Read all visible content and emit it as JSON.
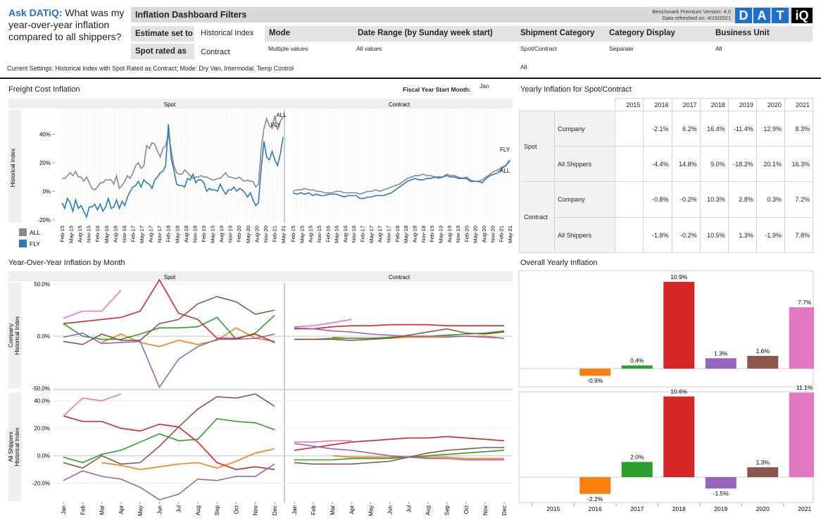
{
  "ask": {
    "prefix": "Ask DATiQ:",
    "question": " What was my year-over-year inflation compared to all shippers?"
  },
  "filters": {
    "title": "Inflation Dashboard Filters",
    "benchmark_version": "Benchmark Premium Version: 4.0",
    "refreshed": "Data refreshed on: 4/15/2021",
    "logo_letters": [
      "D",
      "A",
      "T",
      "iQ"
    ],
    "estimate_label": "Estimate set to",
    "estimate_value": "Historical Index",
    "spot_label": "Spot rated as",
    "spot_value": "Contract",
    "columns": [
      {
        "header": "Mode",
        "value": "Multiple values"
      },
      {
        "header": "Date Range (by Sunday week start)",
        "value": "All values"
      },
      {
        "header": "Shipment Category",
        "value": "Spot/Contract",
        "value2": "All"
      },
      {
        "header": "Category Display",
        "value": "Separate"
      },
      {
        "header": "Business Unit",
        "value": "All"
      }
    ],
    "current_settings": "Current Settings: Historical Index with Spot Rated as Contract; Mode: Dry Van, Intermodal, Temp Control"
  },
  "freight": {
    "title": "Freight Cost Inflation",
    "fiscal_label": "Fiscal Year Start Month:",
    "fiscal_value": "Jan",
    "spot_header": "Spot",
    "contract_header": "Contract",
    "ylabel": "Historical Index",
    "yticks": [
      "40%",
      "20%",
      "0%",
      "-20%"
    ],
    "xticks": [
      "Feb-15",
      "May-15",
      "Aug-15",
      "Nov-15",
      "Feb-16",
      "May-16",
      "Aug-16",
      "Nov-16",
      "Feb-17",
      "May-17",
      "Aug-17",
      "Nov-17",
      "Feb-18",
      "May-18",
      "Aug-18",
      "Nov-18",
      "Feb-19",
      "May-19",
      "Aug-19",
      "Nov-19",
      "Feb-20",
      "May-20",
      "Aug-20",
      "Nov-20",
      "Feb-21",
      "May-21"
    ],
    "legend": [
      {
        "name": "ALL",
        "color": "#8a8a8a"
      },
      {
        "name": "FLY",
        "color": "#2b7bba"
      }
    ],
    "end_labels": {
      "spot_all": "ALL",
      "spot_fly": "FLY",
      "contract_fly": "FLY",
      "contract_all": "ALL"
    }
  },
  "yearly_table": {
    "title": "Yearly Inflation for Spot/Contract",
    "years": [
      "2015",
      "2016",
      "2017",
      "2018",
      "2019",
      "2020",
      "2021"
    ],
    "groups": [
      {
        "name": "Spot",
        "rows": [
          {
            "name": "Company",
            "values": [
              "",
              "-2.1%",
              "6.2%",
              "16.4%",
              "-11.4%",
              "12.9%",
              "8.3%"
            ]
          },
          {
            "name": "All Shippers",
            "values": [
              "",
              "-4.4%",
              "14.8%",
              "9.0%",
              "-18.2%",
              "20.1%",
              "16.3%"
            ]
          }
        ]
      },
      {
        "name": "Contract",
        "rows": [
          {
            "name": "Company",
            "values": [
              "",
              "-0.8%",
              "-0.2%",
              "10.3%",
              "2.8%",
              "0.3%",
              "7.2%"
            ]
          },
          {
            "name": "All Shippers",
            "values": [
              "",
              "-1.8%",
              "-0.2%",
              "10.5%",
              "1.3%",
              "-1.9%",
              "7.8%"
            ]
          }
        ]
      }
    ]
  },
  "yoy": {
    "title": "Year-Over-Year Inflation by Month",
    "spot_header": "Spot",
    "contract_header": "Contract",
    "company_ylabel": [
      "Company",
      "Historical Index"
    ],
    "shippers_ylabel": [
      "All Shippers",
      "Historical Index"
    ],
    "company_yticks": [
      "50.0%",
      "0.0%",
      "-50.0%"
    ],
    "shippers_yticks": [
      "40.0%",
      "20.0%",
      "0.0%",
      "-20.0%"
    ],
    "months": [
      "Jan",
      "Feb",
      "Mar",
      "Apr",
      "May",
      "Jun",
      "Jul",
      "Aug",
      "Sep",
      "Oct",
      "Nov",
      "Dec"
    ]
  },
  "overall": {
    "title": "Overall Yearly Inflation",
    "years": [
      "2015",
      "2016",
      "2017",
      "2018",
      "2019",
      "2020",
      "2021"
    ]
  },
  "colors": {
    "2016": "#ff7f0e",
    "2017": "#2ca02c",
    "2018": "#d62728",
    "2019": "#9467bd",
    "2020": "#8c564b",
    "2021": "#e377c2"
  },
  "chart_data": [
    {
      "type": "line",
      "title": "Freight Cost Inflation",
      "panel": "Spot",
      "ylabel": "Historical Index",
      "ylim": [
        -22,
        57
      ],
      "x_start": "Feb-15",
      "x_end": "May-21",
      "series": [
        {
          "name": "ALL",
          "values": [
            9,
            9,
            11,
            13,
            11,
            14,
            10,
            10,
            7,
            10,
            6,
            2,
            1,
            3,
            6,
            6,
            8,
            8,
            8,
            5,
            11,
            2,
            4,
            7,
            11,
            9,
            13,
            18,
            20,
            16,
            18,
            32,
            30,
            34,
            33,
            28,
            24,
            30,
            32,
            40,
            29,
            18,
            13,
            12,
            12,
            15,
            13,
            11,
            9,
            10,
            10,
            11,
            10,
            10,
            9,
            8,
            8,
            9,
            9,
            11,
            13,
            10,
            10,
            9,
            9,
            10,
            8,
            7,
            8,
            7,
            7,
            3,
            5,
            30,
            44,
            51,
            46,
            44,
            53,
            43,
            49,
            52
          ]
        },
        {
          "name": "FLY",
          "values": [
            -8,
            -12,
            -5,
            -8,
            -14,
            -6,
            -12,
            -10,
            -14,
            -18,
            -11,
            -11,
            -9,
            -13,
            -9,
            -14,
            -11,
            -5,
            -12,
            -11,
            -6,
            -12,
            -7,
            -10,
            -4,
            0,
            3,
            4,
            7,
            3,
            8,
            6,
            5,
            2,
            8,
            10,
            13,
            14,
            18,
            47,
            23,
            15,
            5,
            4,
            4,
            3,
            9,
            8,
            12,
            6,
            8,
            8,
            6,
            0,
            2,
            1,
            1,
            0,
            5,
            1,
            -2,
            1,
            1,
            3,
            0,
            2,
            1,
            -1,
            -4,
            -1,
            -6,
            -10,
            -8,
            16,
            35,
            24,
            22,
            28,
            22,
            18,
            26,
            38
          ]
        }
      ]
    },
    {
      "type": "line",
      "title": "Freight Cost Inflation",
      "panel": "Contract",
      "ylim": [
        -22,
        57
      ],
      "series": [
        {
          "name": "ALL",
          "values": [
            0,
            1,
            1,
            2,
            1,
            1,
            0,
            0,
            -1,
            -1,
            -1,
            0,
            0,
            -1,
            -1,
            -1,
            -1,
            -2,
            -1,
            0,
            0,
            1,
            0,
            1,
            2,
            3,
            4,
            5,
            7,
            9,
            10,
            11,
            11,
            12,
            11,
            11,
            10,
            9,
            10,
            12,
            11,
            11,
            10,
            9,
            10,
            8,
            7,
            7,
            8,
            10,
            12,
            14,
            15,
            17,
            18,
            21
          ]
        },
        {
          "name": "FLY",
          "values": [
            -1,
            -2,
            -1,
            -2,
            -1,
            -3,
            -2,
            -3,
            -3,
            -2,
            -2,
            -2,
            -3,
            -4,
            -3,
            -3,
            -3,
            -5,
            -5,
            -4,
            -4,
            -3,
            -3,
            -3,
            -2,
            -1,
            1,
            3,
            5,
            7,
            8,
            9,
            8,
            8,
            9,
            9,
            10,
            10,
            10,
            11,
            10,
            10,
            9,
            9,
            9,
            7,
            7,
            7,
            6,
            9,
            11,
            12,
            13,
            16,
            18,
            22
          ]
        }
      ]
    },
    {
      "type": "line",
      "title": "Year-Over-Year Inflation by Month",
      "panel": "Spot / Company",
      "categories": [
        "Jan",
        "Feb",
        "Mar",
        "Apr",
        "May",
        "Jun",
        "Jul",
        "Aug",
        "Sep",
        "Oct",
        "Nov",
        "Dec"
      ],
      "ylim": [
        -50,
        50
      ],
      "series": [
        {
          "name": "2016",
          "values": [
            null,
            null,
            -6,
            2,
            -6,
            -10,
            -4,
            -8,
            -4,
            8,
            -2,
            -5
          ]
        },
        {
          "name": "2017",
          "values": [
            12,
            0,
            -3,
            -3,
            2,
            8,
            8,
            9,
            18,
            -3,
            3,
            20
          ]
        },
        {
          "name": "2018",
          "values": [
            12,
            14,
            16,
            18,
            24,
            54,
            22,
            16,
            -2,
            -2,
            2,
            -6
          ]
        },
        {
          "name": "2019",
          "values": [
            -1,
            3,
            -7,
            -6,
            -5,
            -49,
            -22,
            -10,
            -3,
            -3,
            -2,
            2
          ]
        },
        {
          "name": "2020",
          "values": [
            -5,
            -8,
            2,
            -4,
            -4,
            12,
            16,
            31,
            38,
            33,
            21,
            25
          ]
        },
        {
          "name": "2021",
          "values": [
            17,
            24,
            24,
            44,
            null,
            null,
            null,
            null,
            null,
            null,
            null,
            null
          ]
        }
      ]
    },
    {
      "type": "line",
      "title": "Year-Over-Year Inflation by Month",
      "panel": "Contract / Company",
      "categories": [
        "Jan",
        "Feb",
        "Mar",
        "Apr",
        "May",
        "Jun",
        "Jul",
        "Aug",
        "Sep",
        "Oct",
        "Nov",
        "Dec"
      ],
      "ylim": [
        -50,
        50
      ],
      "series": [
        {
          "name": "2016",
          "values": [
            null,
            null,
            -1,
            -2,
            -2,
            -2,
            -1,
            -1,
            -1,
            0,
            0,
            -2
          ]
        },
        {
          "name": "2017",
          "values": [
            -3,
            -3,
            -2,
            -2,
            -2,
            -1,
            0,
            0,
            1,
            2,
            3,
            5
          ]
        },
        {
          "name": "2018",
          "values": [
            7,
            7,
            9,
            10,
            10,
            11,
            11,
            11,
            10,
            10,
            10,
            10
          ]
        },
        {
          "name": "2019",
          "values": [
            8,
            7,
            5,
            4,
            2,
            1,
            0,
            0,
            0,
            0,
            -1,
            -2
          ]
        },
        {
          "name": "2020",
          "values": [
            -3,
            -3,
            -3,
            -4,
            -3,
            -2,
            1,
            4,
            7,
            3,
            2,
            4
          ]
        },
        {
          "name": "2021",
          "values": [
            9,
            10,
            13,
            16,
            null,
            null,
            null,
            null,
            null,
            null,
            null,
            null
          ]
        }
      ]
    },
    {
      "type": "line",
      "title": "Year-Over-Year Inflation by Month",
      "panel": "Spot / All Shippers",
      "categories": [
        "Jan",
        "Feb",
        "Mar",
        "Apr",
        "May",
        "Jun",
        "Jul",
        "Aug",
        "Sep",
        "Oct",
        "Nov",
        "Dec"
      ],
      "ylim": [
        -33,
        45
      ],
      "series": [
        {
          "name": "2016",
          "values": [
            null,
            null,
            -5,
            -7,
            -10,
            -8,
            -6,
            -5,
            -9,
            -4,
            2,
            5
          ]
        },
        {
          "name": "2017",
          "values": [
            -1,
            -5,
            1,
            4,
            10,
            16,
            11,
            12,
            27,
            25,
            24,
            19
          ]
        },
        {
          "name": "2018",
          "values": [
            29,
            25,
            25,
            20,
            18,
            23,
            21,
            10,
            -5,
            -10,
            -8,
            -10
          ]
        },
        {
          "name": "2019",
          "values": [
            -18,
            -11,
            -15,
            -17,
            -23,
            -32,
            -28,
            -17,
            -18,
            -15,
            -15,
            -6
          ]
        },
        {
          "name": "2020",
          "values": [
            -5,
            -9,
            0,
            -6,
            -5,
            7,
            21,
            34,
            43,
            42,
            45,
            36
          ]
        },
        {
          "name": "2021",
          "values": [
            29,
            42,
            40,
            45,
            null,
            null,
            null,
            null,
            null,
            null,
            null,
            null
          ]
        }
      ]
    },
    {
      "type": "line",
      "title": "Year-Over-Year Inflation by Month",
      "panel": "Contract / All Shippers",
      "categories": [
        "Jan",
        "Feb",
        "Mar",
        "Apr",
        "May",
        "Jun",
        "Jul",
        "Aug",
        "Sep",
        "Oct",
        "Nov",
        "Dec"
      ],
      "ylim": [
        -33,
        45
      ],
      "series": [
        {
          "name": "2016",
          "values": [
            null,
            null,
            0,
            -1,
            -1,
            -1,
            -1,
            -1,
            -1,
            -2,
            -2,
            -2
          ]
        },
        {
          "name": "2017",
          "values": [
            -3,
            -3,
            -3,
            -2,
            -2,
            -2,
            -1,
            0,
            1,
            2,
            3,
            4
          ]
        },
        {
          "name": "2018",
          "values": [
            4,
            6,
            8,
            10,
            11,
            12,
            13,
            13,
            14,
            13,
            12,
            11
          ]
        },
        {
          "name": "2019",
          "values": [
            9,
            7,
            5,
            4,
            2,
            0,
            -1,
            -2,
            -2,
            -3,
            -3,
            -3
          ]
        },
        {
          "name": "2020",
          "values": [
            -5,
            -6,
            -6,
            -6,
            -5,
            -4,
            -1,
            2,
            4,
            5,
            6,
            6
          ]
        },
        {
          "name": "2021",
          "values": [
            10,
            10,
            11,
            11,
            null,
            null,
            null,
            null,
            null,
            null,
            null,
            null
          ]
        }
      ]
    },
    {
      "type": "bar",
      "title": "Overall Yearly Inflation",
      "panel": "Company",
      "categories": [
        "2015",
        "2016",
        "2017",
        "2018",
        "2019",
        "2020",
        "2021"
      ],
      "values": [
        null,
        -0.9,
        0.4,
        10.9,
        1.3,
        1.6,
        7.7
      ],
      "labels": [
        "",
        "-0.9%",
        "0.4%",
        "10.9%",
        "1.3%",
        "1.6%",
        "7.7%"
      ]
    },
    {
      "type": "bar",
      "title": "Overall Yearly Inflation",
      "panel": "All Shippers",
      "categories": [
        "2015",
        "2016",
        "2017",
        "2018",
        "2019",
        "2020",
        "2021"
      ],
      "values": [
        null,
        -2.2,
        2.0,
        10.6,
        -1.5,
        1.3,
        11.1
      ],
      "labels": [
        "",
        "-2.2%",
        "2.0%",
        "10.6%",
        "-1.5%",
        "1.3%",
        "11.1%"
      ]
    }
  ]
}
